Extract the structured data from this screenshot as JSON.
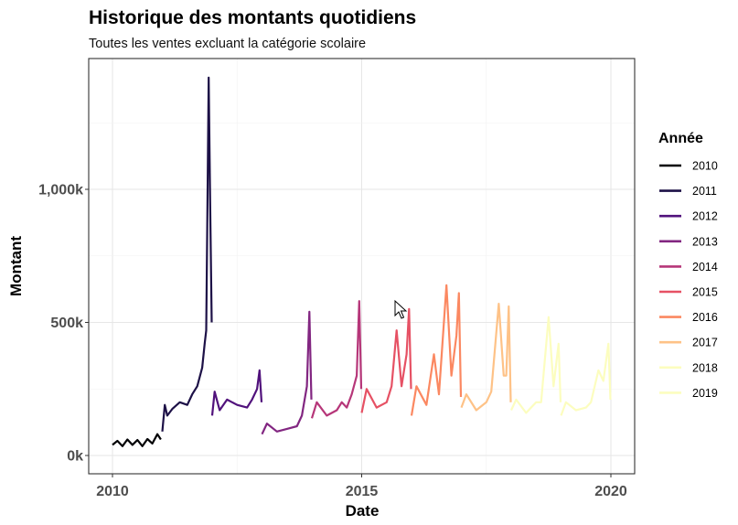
{
  "chart_data": {
    "type": "line",
    "title": "Historique des montants quotidiens",
    "subtitle": "Toutes les ventes excluant la catégorie scolaire",
    "xlabel": "Date",
    "ylabel": "Montant",
    "xlim": [
      2010,
      2020
    ],
    "ylim": [
      0,
      1420000
    ],
    "x_ticks": [
      {
        "value": 2010,
        "label": "2010"
      },
      {
        "value": 2015,
        "label": "2015"
      },
      {
        "value": 2020,
        "label": "2020"
      }
    ],
    "y_ticks": [
      {
        "value": 0,
        "label": "0k"
      },
      {
        "value": 500000,
        "label": "500k"
      },
      {
        "value": 1000000,
        "label": "1,000k"
      }
    ],
    "grid": true,
    "legend": {
      "title": "Année",
      "position": "right"
    },
    "series": [
      {
        "name": "2010",
        "color": "#000004",
        "points": [
          [
            2010.0,
            40000
          ],
          [
            2010.1,
            55000
          ],
          [
            2010.2,
            35000
          ],
          [
            2010.3,
            60000
          ],
          [
            2010.4,
            40000
          ],
          [
            2010.5,
            58000
          ],
          [
            2010.6,
            35000
          ],
          [
            2010.7,
            62000
          ],
          [
            2010.8,
            45000
          ],
          [
            2010.9,
            80000
          ],
          [
            2010.97,
            60000
          ]
        ]
      },
      {
        "name": "2011",
        "color": "#1d1147",
        "points": [
          [
            2011.0,
            90000
          ],
          [
            2011.05,
            190000
          ],
          [
            2011.1,
            150000
          ],
          [
            2011.2,
            175000
          ],
          [
            2011.35,
            200000
          ],
          [
            2011.5,
            190000
          ],
          [
            2011.6,
            230000
          ],
          [
            2011.7,
            260000
          ],
          [
            2011.8,
            330000
          ],
          [
            2011.85,
            420000
          ],
          [
            2011.88,
            470000
          ],
          [
            2011.9,
            850000
          ],
          [
            2011.93,
            1420000
          ],
          [
            2011.96,
            950000
          ],
          [
            2011.99,
            500000
          ]
        ]
      },
      {
        "name": "2012",
        "color": "#51127c",
        "points": [
          [
            2012.0,
            150000
          ],
          [
            2012.05,
            240000
          ],
          [
            2012.15,
            170000
          ],
          [
            2012.3,
            210000
          ],
          [
            2012.5,
            190000
          ],
          [
            2012.7,
            180000
          ],
          [
            2012.8,
            210000
          ],
          [
            2012.9,
            250000
          ],
          [
            2012.95,
            320000
          ],
          [
            2012.99,
            200000
          ]
        ]
      },
      {
        "name": "2013",
        "color": "#822681",
        "points": [
          [
            2013.0,
            80000
          ],
          [
            2013.1,
            120000
          ],
          [
            2013.3,
            90000
          ],
          [
            2013.5,
            100000
          ],
          [
            2013.7,
            110000
          ],
          [
            2013.8,
            150000
          ],
          [
            2013.9,
            260000
          ],
          [
            2013.95,
            540000
          ],
          [
            2013.99,
            210000
          ]
        ]
      },
      {
        "name": "2014",
        "color": "#b63679",
        "points": [
          [
            2014.0,
            140000
          ],
          [
            2014.1,
            200000
          ],
          [
            2014.3,
            150000
          ],
          [
            2014.5,
            170000
          ],
          [
            2014.6,
            200000
          ],
          [
            2014.7,
            180000
          ],
          [
            2014.8,
            230000
          ],
          [
            2014.9,
            300000
          ],
          [
            2014.95,
            580000
          ],
          [
            2014.99,
            250000
          ]
        ]
      },
      {
        "name": "2015",
        "color": "#e65164",
        "points": [
          [
            2015.0,
            160000
          ],
          [
            2015.1,
            250000
          ],
          [
            2015.3,
            180000
          ],
          [
            2015.5,
            200000
          ],
          [
            2015.6,
            260000
          ],
          [
            2015.7,
            470000
          ],
          [
            2015.8,
            260000
          ],
          [
            2015.9,
            380000
          ],
          [
            2015.95,
            550000
          ],
          [
            2015.99,
            250000
          ]
        ]
      },
      {
        "name": "2016",
        "color": "#fb8861",
        "points": [
          [
            2016.0,
            150000
          ],
          [
            2016.1,
            260000
          ],
          [
            2016.3,
            190000
          ],
          [
            2016.45,
            380000
          ],
          [
            2016.55,
            230000
          ],
          [
            2016.7,
            640000
          ],
          [
            2016.8,
            300000
          ],
          [
            2016.9,
            450000
          ],
          [
            2016.95,
            610000
          ],
          [
            2016.99,
            220000
          ]
        ]
      },
      {
        "name": "2017",
        "color": "#fec287",
        "points": [
          [
            2017.0,
            180000
          ],
          [
            2017.1,
            230000
          ],
          [
            2017.3,
            170000
          ],
          [
            2017.5,
            200000
          ],
          [
            2017.6,
            240000
          ],
          [
            2017.75,
            570000
          ],
          [
            2017.85,
            300000
          ],
          [
            2017.9,
            300000
          ],
          [
            2017.95,
            560000
          ],
          [
            2017.99,
            200000
          ]
        ]
      },
      {
        "name": "2018",
        "color": "#fcfdbf",
        "points": [
          [
            2018.0,
            170000
          ],
          [
            2018.1,
            210000
          ],
          [
            2018.3,
            160000
          ],
          [
            2018.5,
            200000
          ],
          [
            2018.6,
            200000
          ],
          [
            2018.75,
            520000
          ],
          [
            2018.85,
            260000
          ],
          [
            2018.95,
            420000
          ],
          [
            2018.99,
            200000
          ]
        ]
      },
      {
        "name": "2019",
        "color": "#fcfdbf",
        "points": [
          [
            2019.0,
            150000
          ],
          [
            2019.1,
            200000
          ],
          [
            2019.3,
            170000
          ],
          [
            2019.5,
            180000
          ],
          [
            2019.6,
            200000
          ],
          [
            2019.75,
            320000
          ],
          [
            2019.85,
            280000
          ],
          [
            2019.95,
            420000
          ],
          [
            2019.99,
            210000
          ]
        ]
      }
    ]
  }
}
